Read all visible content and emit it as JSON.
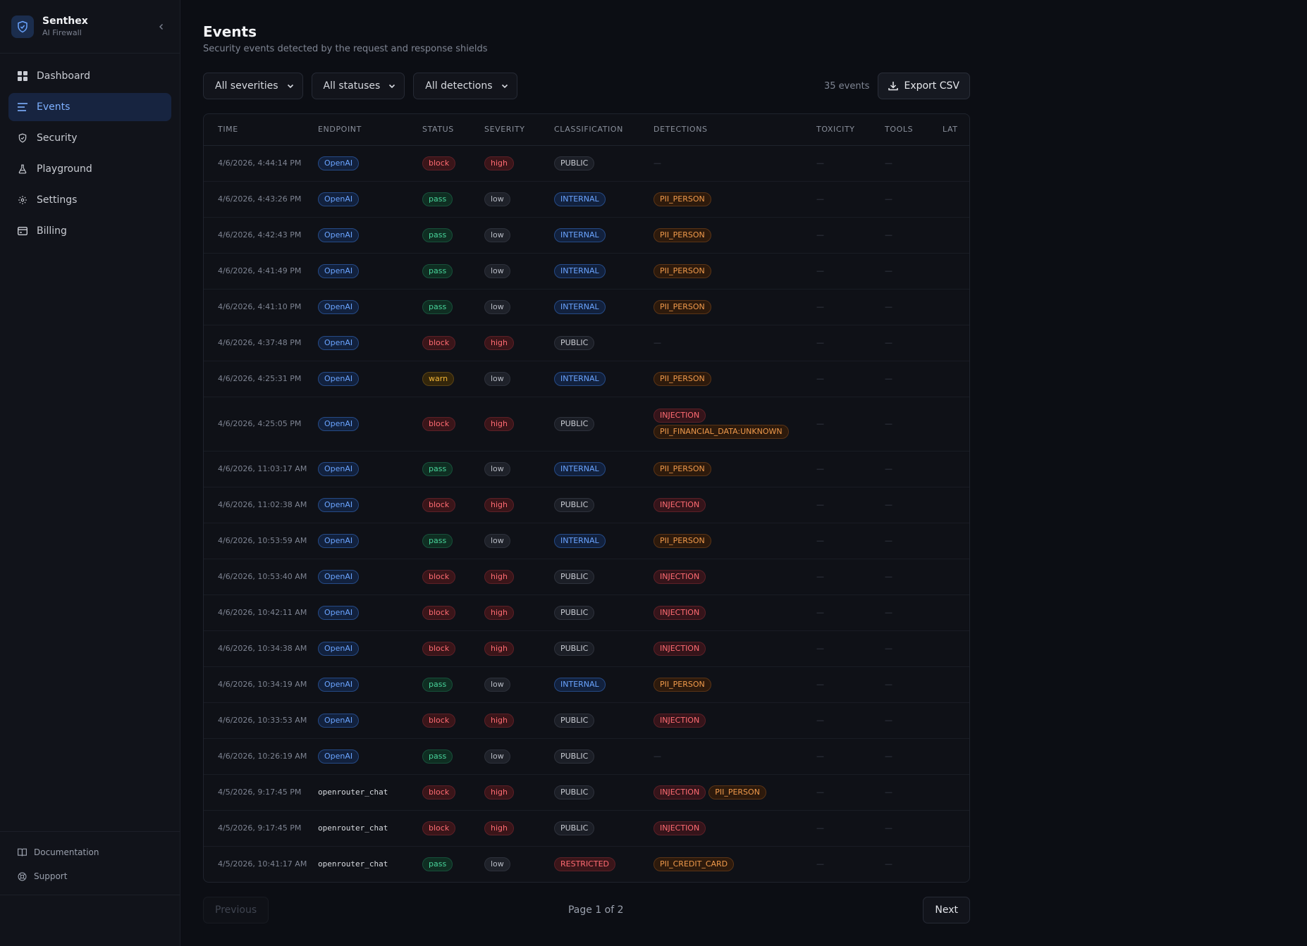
{
  "brand": {
    "name": "Senthex",
    "subtitle": "AI Firewall"
  },
  "nav": [
    {
      "label": "Dashboard",
      "icon": "dashboard-grid-icon"
    },
    {
      "label": "Events",
      "icon": "list-icon",
      "active": true
    },
    {
      "label": "Security",
      "icon": "shield-icon"
    },
    {
      "label": "Playground",
      "icon": "flask-icon"
    },
    {
      "label": "Settings",
      "icon": "gear-icon"
    },
    {
      "label": "Billing",
      "icon": "card-icon"
    }
  ],
  "footer": [
    {
      "label": "Documentation",
      "icon": "book-icon"
    },
    {
      "label": "Support",
      "icon": "lifebuoy-icon"
    }
  ],
  "page": {
    "title": "Events",
    "subtitle": "Security events detected by the request and response shields"
  },
  "filters": {
    "severity": "All severities",
    "status": "All statuses",
    "detection": "All detections"
  },
  "count_label": "35 events",
  "export_label": "Export CSV",
  "columns": [
    "TIME",
    "ENDPOINT",
    "STATUS",
    "SEVERITY",
    "CLASSIFICATION",
    "DETECTIONS",
    "TOXICITY",
    "TOOLS",
    "LAT"
  ],
  "rows": [
    {
      "time": "4/6/2026, 4:44:14 PM",
      "endpoint": "OpenAI",
      "endpoint_kind": "pill",
      "status": "block",
      "severity": "high",
      "classification": "PUBLIC",
      "detections": []
    },
    {
      "time": "4/6/2026, 4:43:26 PM",
      "endpoint": "OpenAI",
      "endpoint_kind": "pill",
      "status": "pass",
      "severity": "low",
      "classification": "INTERNAL",
      "detections": [
        "PII_PERSON"
      ]
    },
    {
      "time": "4/6/2026, 4:42:43 PM",
      "endpoint": "OpenAI",
      "endpoint_kind": "pill",
      "status": "pass",
      "severity": "low",
      "classification": "INTERNAL",
      "detections": [
        "PII_PERSON"
      ]
    },
    {
      "time": "4/6/2026, 4:41:49 PM",
      "endpoint": "OpenAI",
      "endpoint_kind": "pill",
      "status": "pass",
      "severity": "low",
      "classification": "INTERNAL",
      "detections": [
        "PII_PERSON"
      ]
    },
    {
      "time": "4/6/2026, 4:41:10 PM",
      "endpoint": "OpenAI",
      "endpoint_kind": "pill",
      "status": "pass",
      "severity": "low",
      "classification": "INTERNAL",
      "detections": [
        "PII_PERSON"
      ]
    },
    {
      "time": "4/6/2026, 4:37:48 PM",
      "endpoint": "OpenAI",
      "endpoint_kind": "pill",
      "status": "block",
      "severity": "high",
      "classification": "PUBLIC",
      "detections": []
    },
    {
      "time": "4/6/2026, 4:25:31 PM",
      "endpoint": "OpenAI",
      "endpoint_kind": "pill",
      "status": "warn",
      "severity": "low",
      "classification": "INTERNAL",
      "detections": [
        "PII_PERSON"
      ]
    },
    {
      "time": "4/6/2026, 4:25:05 PM",
      "endpoint": "OpenAI",
      "endpoint_kind": "pill",
      "status": "block",
      "severity": "high",
      "classification": "PUBLIC",
      "detections": [
        "INJECTION",
        "PII_FINANCIAL_DATA:UNKNOWN"
      ],
      "stacked": true
    },
    {
      "time": "4/6/2026, 11:03:17 AM",
      "endpoint": "OpenAI",
      "endpoint_kind": "pill",
      "status": "pass",
      "severity": "low",
      "classification": "INTERNAL",
      "detections": [
        "PII_PERSON"
      ]
    },
    {
      "time": "4/6/2026, 11:02:38 AM",
      "endpoint": "OpenAI",
      "endpoint_kind": "pill",
      "status": "block",
      "severity": "high",
      "classification": "PUBLIC",
      "detections": [
        "INJECTION"
      ]
    },
    {
      "time": "4/6/2026, 10:53:59 AM",
      "endpoint": "OpenAI",
      "endpoint_kind": "pill",
      "status": "pass",
      "severity": "low",
      "classification": "INTERNAL",
      "detections": [
        "PII_PERSON"
      ]
    },
    {
      "time": "4/6/2026, 10:53:40 AM",
      "endpoint": "OpenAI",
      "endpoint_kind": "pill",
      "status": "block",
      "severity": "high",
      "classification": "PUBLIC",
      "detections": [
        "INJECTION"
      ]
    },
    {
      "time": "4/6/2026, 10:42:11 AM",
      "endpoint": "OpenAI",
      "endpoint_kind": "pill",
      "status": "block",
      "severity": "high",
      "classification": "PUBLIC",
      "detections": [
        "INJECTION"
      ]
    },
    {
      "time": "4/6/2026, 10:34:38 AM",
      "endpoint": "OpenAI",
      "endpoint_kind": "pill",
      "status": "block",
      "severity": "high",
      "classification": "PUBLIC",
      "detections": [
        "INJECTION"
      ]
    },
    {
      "time": "4/6/2026, 10:34:19 AM",
      "endpoint": "OpenAI",
      "endpoint_kind": "pill",
      "status": "pass",
      "severity": "low",
      "classification": "INTERNAL",
      "detections": [
        "PII_PERSON"
      ]
    },
    {
      "time": "4/6/2026, 10:33:53 AM",
      "endpoint": "OpenAI",
      "endpoint_kind": "pill",
      "status": "block",
      "severity": "high",
      "classification": "PUBLIC",
      "detections": [
        "INJECTION"
      ]
    },
    {
      "time": "4/6/2026, 10:26:19 AM",
      "endpoint": "OpenAI",
      "endpoint_kind": "pill",
      "status": "pass",
      "severity": "low",
      "classification": "PUBLIC",
      "detections": []
    },
    {
      "time": "4/5/2026, 9:17:45 PM",
      "endpoint": "openrouter_chat",
      "endpoint_kind": "mono",
      "status": "block",
      "severity": "high",
      "classification": "PUBLIC",
      "detections": [
        "INJECTION",
        "PII_PERSON"
      ]
    },
    {
      "time": "4/5/2026, 9:17:45 PM",
      "endpoint": "openrouter_chat",
      "endpoint_kind": "mono",
      "status": "block",
      "severity": "high",
      "classification": "PUBLIC",
      "detections": [
        "INJECTION"
      ]
    },
    {
      "time": "4/5/2026, 10:41:17 AM",
      "endpoint": "openrouter_chat",
      "endpoint_kind": "mono",
      "status": "pass",
      "severity": "low",
      "classification": "RESTRICTED",
      "detections": [
        "PII_CREDIT_CARD"
      ]
    }
  ],
  "empty_cell": "—",
  "pagination": {
    "previous": "Previous",
    "info": "Page 1 of 2",
    "next": "Next"
  }
}
